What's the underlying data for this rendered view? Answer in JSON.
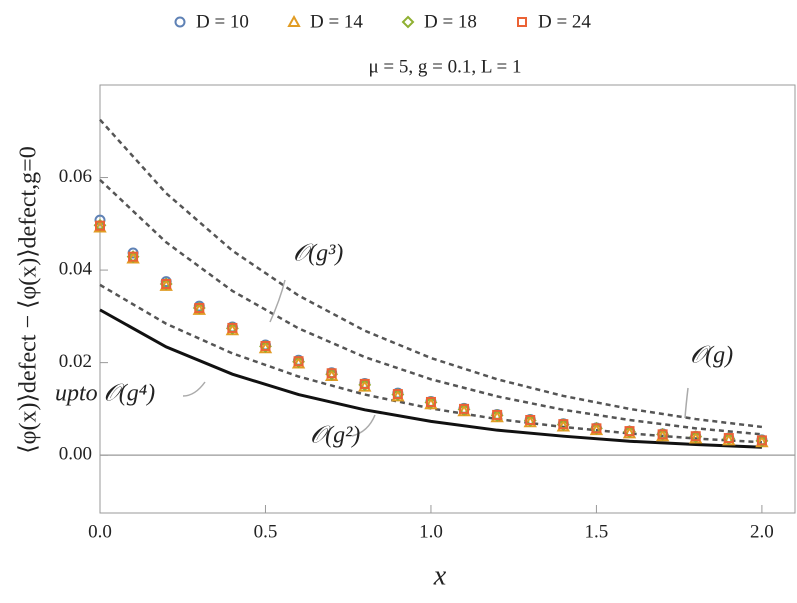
{
  "chart_data": {
    "type": "scatter",
    "title": "μ = 5,  g = 0.1,  L = 1",
    "x_label": "x",
    "y_label": "⟨φ(x)⟩defect − ⟨φ(x)⟩defect,g=0",
    "xlim": [
      0,
      2.1
    ],
    "ylim": [
      -0.0125,
      0.08
    ],
    "xticks": [
      {
        "value": 0,
        "label": "0.0"
      },
      0.5,
      {
        "value": 1,
        "label": "1.0"
      },
      1.5,
      {
        "value": 2,
        "label": "2.0"
      }
    ],
    "yticks": [
      {
        "value": 0,
        "label": "0.00"
      },
      {
        "value": 0.02,
        "label": "0.02"
      },
      {
        "value": 0.04,
        "label": "0.04"
      },
      {
        "value": 0.06,
        "label": "0.06"
      }
    ],
    "x": [
      0,
      0.1,
      0.2,
      0.3,
      0.4,
      0.5,
      0.6,
      0.7,
      0.8,
      0.9,
      1.0,
      1.1,
      1.2,
      1.3,
      1.4,
      1.5,
      1.6,
      1.7,
      1.8,
      1.9,
      2.0
    ],
    "series": [
      {
        "name": "D = 10",
        "marker": "circle",
        "color": "#5e81b5",
        "values": [
          0.0508,
          0.0437,
          0.0375,
          0.0322,
          0.0277,
          0.0238,
          0.0205,
          0.0178,
          0.0155,
          0.0134,
          0.0116,
          0.0101,
          0.0088,
          0.0077,
          0.0068,
          0.0059,
          0.0052,
          0.0046,
          0.0041,
          0.0037,
          0.0033
        ]
      },
      {
        "name": "D = 14",
        "marker": "triangle",
        "color": "#e19c24",
        "values": [
          0.0492,
          0.0425,
          0.0366,
          0.0314,
          0.027,
          0.0231,
          0.0198,
          0.0171,
          0.0148,
          0.0127,
          0.011,
          0.0095,
          0.0082,
          0.0071,
          0.0062,
          0.0054,
          0.0047,
          0.0041,
          0.0036,
          0.0032,
          0.0028
        ]
      },
      {
        "name": "D = 18",
        "marker": "diamond",
        "color": "#8fb032",
        "values": [
          0.0497,
          0.0429,
          0.037,
          0.0318,
          0.0274,
          0.0235,
          0.0202,
          0.0175,
          0.0152,
          0.0131,
          0.0114,
          0.0099,
          0.0086,
          0.0075,
          0.0066,
          0.0058,
          0.0051,
          0.0045,
          0.004,
          0.0036,
          0.0031
        ]
      },
      {
        "name": "D = 24",
        "marker": "square",
        "color": "#eb6235",
        "values": [
          0.0496,
          0.0429,
          0.037,
          0.0318,
          0.0275,
          0.0236,
          0.0203,
          0.0177,
          0.0154,
          0.0132,
          0.0115,
          0.01,
          0.0087,
          0.0076,
          0.0067,
          0.0058,
          0.0052,
          0.0045,
          0.0041,
          0.0037,
          0.0032
        ]
      }
    ],
    "curves": [
      {
        "label": "𝒪(g)",
        "dashed": true,
        "color": "#555555",
        "x": [
          0,
          0.2,
          0.4,
          0.6,
          0.8,
          1.0,
          1.2,
          1.4,
          1.6,
          1.8,
          2.0
        ],
        "values": [
          0.0725,
          0.0566,
          0.0442,
          0.0345,
          0.0269,
          0.021,
          0.0164,
          0.0128,
          0.01,
          0.0078,
          0.0061
        ]
      },
      {
        "label": "𝒪(g³)",
        "dashed": true,
        "color": "#555555",
        "x": [
          0,
          0.2,
          0.4,
          0.6,
          0.8,
          1.0,
          1.2,
          1.4,
          1.6,
          1.8,
          2.0
        ],
        "values": [
          0.0595,
          0.046,
          0.0355,
          0.0274,
          0.0212,
          0.0164,
          0.0127,
          0.0098,
          0.0076,
          0.0058,
          0.0045
        ]
      },
      {
        "label": "𝒪(g²)",
        "dashed": true,
        "color": "#555555",
        "x": [
          0,
          0.2,
          0.4,
          0.6,
          0.8,
          1.0,
          1.2,
          1.4,
          1.6,
          1.8,
          2.0
        ],
        "values": [
          0.0368,
          0.0284,
          0.022,
          0.017,
          0.0131,
          0.0101,
          0.0078,
          0.0061,
          0.0047,
          0.0036,
          0.0028
        ]
      },
      {
        "label": "upto 𝒪(g⁴)",
        "dashed": false,
        "color": "#111111",
        "x": [
          0,
          0.2,
          0.4,
          0.6,
          0.8,
          1.0,
          1.2,
          1.4,
          1.6,
          1.8,
          2.0
        ],
        "values": [
          0.0314,
          0.0234,
          0.0175,
          0.0131,
          0.0098,
          0.0073,
          0.0054,
          0.0041,
          0.003,
          0.0023,
          0.0017
        ]
      }
    ]
  }
}
